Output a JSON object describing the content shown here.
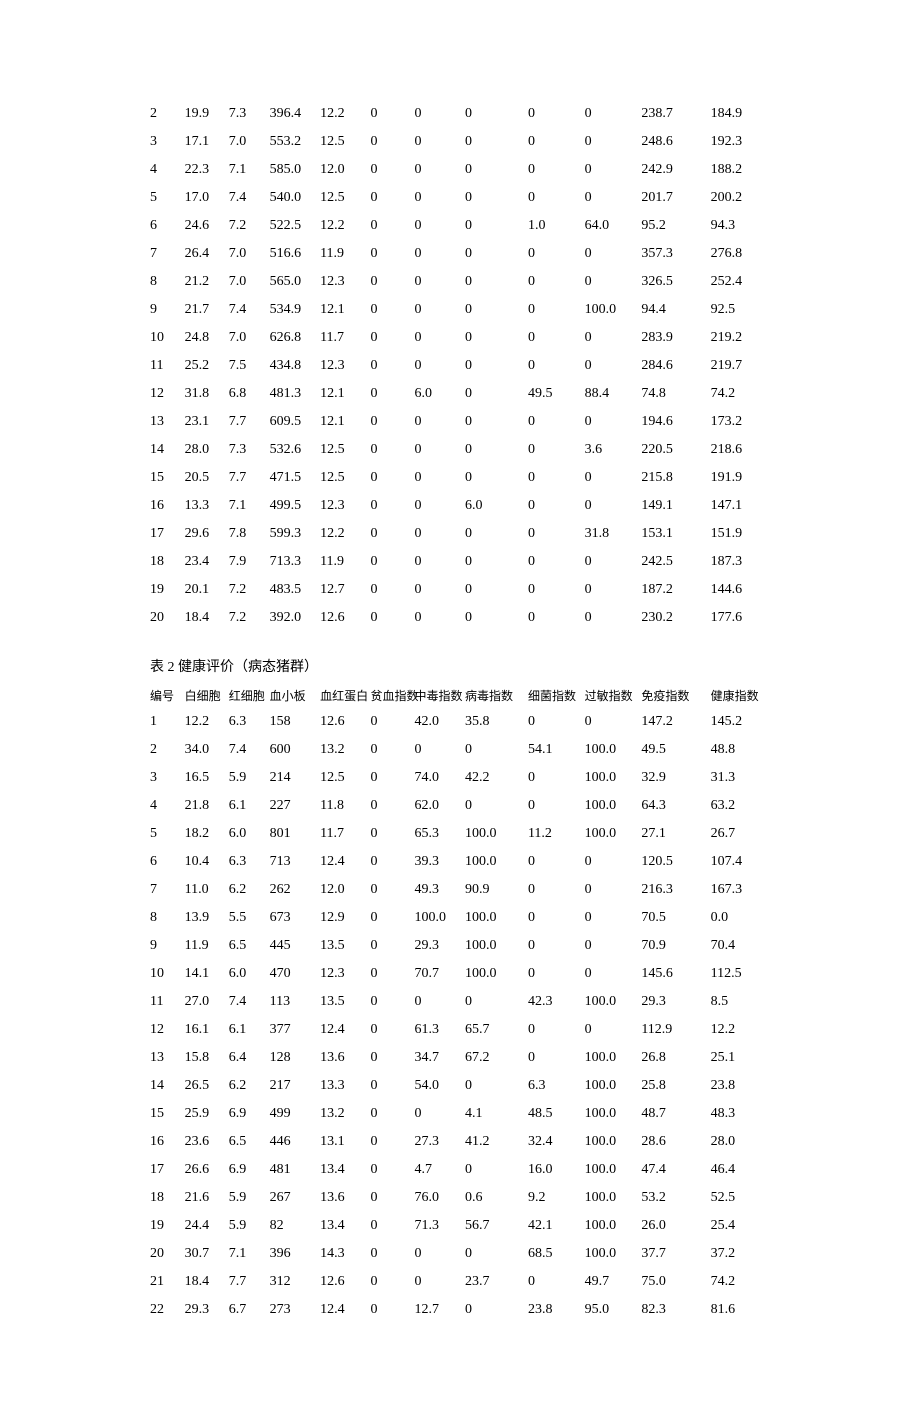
{
  "table1": {
    "rows": [
      [
        "2",
        "19.9",
        "7.3",
        "396.4",
        "12.2",
        "0",
        "0",
        "0",
        "0",
        "0",
        "238.7",
        "184.9"
      ],
      [
        "3",
        "17.1",
        "7.0",
        "553.2",
        "12.5",
        "0",
        "0",
        "0",
        "0",
        "0",
        "248.6",
        "192.3"
      ],
      [
        "4",
        "22.3",
        "7.1",
        "585.0",
        "12.0",
        "0",
        "0",
        "0",
        "0",
        "0",
        "242.9",
        "188.2"
      ],
      [
        "5",
        "17.0",
        "7.4",
        "540.0",
        "12.5",
        "0",
        "0",
        "0",
        "0",
        "0",
        "201.7",
        "200.2"
      ],
      [
        "6",
        "24.6",
        "7.2",
        "522.5",
        "12.2",
        "0",
        "0",
        "0",
        "1.0",
        "64.0",
        "95.2",
        "94.3"
      ],
      [
        "7",
        "26.4",
        "7.0",
        "516.6",
        "11.9",
        "0",
        "0",
        "0",
        "0",
        "0",
        "357.3",
        "276.8"
      ],
      [
        "8",
        "21.2",
        "7.0",
        "565.0",
        "12.3",
        "0",
        "0",
        "0",
        "0",
        "0",
        "326.5",
        "252.4"
      ],
      [
        "9",
        "21.7",
        "7.4",
        "534.9",
        "12.1",
        "0",
        "0",
        "0",
        "0",
        "100.0",
        " 94.4",
        " 92.5"
      ],
      [
        "10",
        "24.8",
        "7.0",
        "626.8",
        "11.7",
        "0",
        "0",
        "0",
        "0",
        "0",
        "283.9",
        "219.2"
      ],
      [
        "11",
        "25.2",
        "7.5",
        "434.8",
        "12.3",
        "0",
        "0",
        "0",
        "0",
        "0",
        "284.6",
        "219.7"
      ],
      [
        "12",
        "31.8",
        "6.8",
        "481.3",
        "12.1",
        "0",
        "6.0",
        "0",
        "49.5",
        "88.4",
        "74.8",
        "74.2"
      ],
      [
        "13",
        "23.1",
        "7.7",
        "609.5",
        "12.1",
        "0",
        "0",
        "0",
        "0",
        "0",
        "194.6",
        " 173.2"
      ],
      [
        "14",
        "28.0",
        "7.3",
        "532.6",
        "12.5",
        "0",
        "0",
        "0",
        "0",
        "3.6",
        " 220.5",
        "218.6"
      ],
      [
        "15",
        "20.5",
        "7.7",
        "471.5",
        "12.5",
        "0",
        "0",
        "0",
        "0",
        "0",
        "215.8",
        " 191.9"
      ],
      [
        "16",
        "13.3",
        "7.1",
        "499.5",
        "12.3",
        "0",
        "0",
        "6.0",
        " 0",
        "0",
        " 149.1",
        "147.1"
      ],
      [
        "17",
        "29.6",
        "7.8",
        "599.3",
        "12.2",
        "0",
        "0",
        "0",
        "0",
        "31.8",
        "153.1",
        "151.9"
      ],
      [
        "18",
        "23.4",
        "7.9",
        "713.3",
        "11.9",
        "0",
        "0",
        "0",
        "0",
        "0",
        " 242.5",
        "187.3"
      ],
      [
        "19",
        "20.1",
        "7.2",
        "483.5",
        "12.7",
        "0",
        "0",
        "0",
        "0",
        "0",
        " 187.2",
        "144.6"
      ],
      [
        "20",
        "18.4",
        "7.2",
        "392.0",
        "12.6",
        "0",
        "0",
        "0",
        "0",
        "0",
        " 230.2",
        "177.6"
      ]
    ]
  },
  "table2": {
    "caption": "表 2  健康评价（病态猪群）",
    "headers": [
      "编号",
      "白细胞",
      "红细胞",
      "血小板",
      "血红蛋白",
      "贫血指数",
      "中毒指数",
      "病毒指数",
      "细菌指数",
      "过敏指数",
      "免疫指数",
      "健康指数"
    ],
    "rows": [
      [
        "1",
        "12.2",
        "6.3",
        "158",
        "12.6",
        "0",
        "42.0",
        "35.8",
        "0",
        "0",
        "147.2",
        "145.2"
      ],
      [
        "2",
        "34.0",
        "7.4",
        "600",
        "13.2",
        "0",
        "0",
        " 0",
        " 54.1",
        "100.0",
        "49.5",
        "48.8"
      ],
      [
        "3",
        "16.5",
        "5.9",
        "214",
        "12.5",
        "0",
        "74.0",
        "42.2",
        "0",
        " 100.0",
        "32.9",
        "31.3"
      ],
      [
        "4",
        "21.8",
        "6.1",
        "227",
        "11.8",
        "0",
        "62.0",
        "0",
        " 0",
        " 100.0",
        " 64.3",
        " 63.2"
      ],
      [
        "5",
        "18.2",
        "6.0",
        "801",
        "11.7",
        "0",
        "65.3",
        "100.0",
        " 11.2",
        " 100.0",
        " 27.1",
        " 26.7"
      ],
      [
        "6",
        "10.4",
        "6.3",
        "713",
        "12.4",
        "0",
        "39.3",
        "100.0",
        "0",
        " 0",
        "120.5",
        "107.4"
      ],
      [
        "7",
        "11.0",
        "6.2",
        "262",
        "12.0",
        "0",
        "49.3",
        "90.9",
        "0",
        "0",
        "216.3",
        "167.3"
      ],
      [
        "8",
        "13.9",
        "5.5",
        "673",
        "12.9",
        "0",
        "100.0",
        "100.0",
        "0",
        "0",
        "70.5",
        " 0.0"
      ],
      [
        "9",
        "11.9",
        "6.5",
        "445",
        "13.5",
        "0",
        "29.3",
        "100.0",
        "0",
        "0",
        "70.9",
        "70.4"
      ],
      [
        "10",
        "14.1",
        "6.0",
        "470",
        "12.3",
        "0",
        "70.7",
        "100.0",
        "0",
        "0",
        "145.6",
        "112.5"
      ],
      [
        "11",
        "27.0",
        "7.4",
        "113",
        "13.5",
        "0",
        "0",
        "0",
        " 42.3",
        "100.0",
        "29.3",
        "8.5"
      ],
      [
        "12",
        "16.1",
        "6.1",
        "377",
        "12.4",
        "0",
        "61.3",
        "65.7",
        "0",
        "  0",
        "112.9",
        "12.2"
      ],
      [
        "13",
        "15.8",
        "6.4",
        "128",
        "13.6",
        "0",
        "34.7",
        "67.2",
        "0",
        "100.0",
        "26.8",
        "25.1"
      ],
      [
        "14",
        "26.5",
        "6.2",
        "217",
        "13.3",
        "0",
        "54.0",
        "0",
        " 6.3",
        "100.0",
        "25.8",
        "23.8"
      ],
      [
        "15",
        "25.9",
        "6.9",
        "499",
        "13.2",
        "0",
        "0",
        " 4.1",
        " 48.5",
        "100.0",
        " 48.7",
        " 48.3"
      ],
      [
        "16",
        "23.6",
        "6.5",
        "446",
        "13.1",
        "0",
        "27.3",
        "41.2",
        "32.4",
        "100.0",
        "28.6",
        "28.0"
      ],
      [
        "17",
        "26.6",
        "6.9",
        "481",
        "13.4",
        "0",
        "4.7",
        "0",
        " 16.0",
        "100.0",
        " 47.4",
        " 46.4"
      ],
      [
        "18",
        "21.6",
        "5.9",
        "267",
        "13.6",
        "0",
        "76.0",
        "0.6",
        "9.2",
        "100.0",
        "53.2",
        " 52.5"
      ],
      [
        "19",
        "24.4",
        "5.9",
        "82",
        "13.4",
        "0",
        "71.3",
        "56.7",
        "42.1",
        "100.0",
        "26.0",
        " 25.4"
      ],
      [
        "20",
        "30.7",
        "7.1",
        "396",
        "14.3",
        "0",
        "0",
        " 0",
        " 68.5",
        "100.0",
        "37.7",
        "37.2"
      ],
      [
        "21",
        "18.4",
        "7.7",
        "312",
        "12.6",
        "0",
        "0",
        "23.7",
        "0",
        " 49.7",
        "75.0",
        "74.2"
      ],
      [
        "22",
        "29.3",
        "6.7",
        "273",
        "12.4",
        "0",
        "12.7",
        "0",
        " 23.8",
        " 95.0",
        " 82.3",
        " 81.6"
      ]
    ]
  }
}
